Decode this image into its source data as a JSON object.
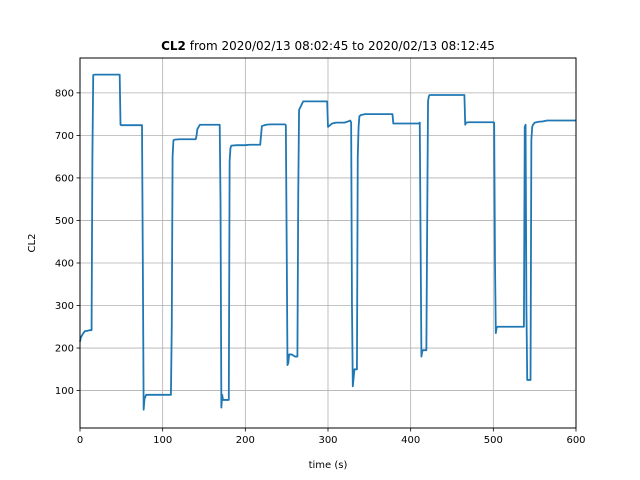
{
  "chart_data": {
    "type": "line",
    "title_bold": "CL2",
    "title_rest": " from 2020/02/13 08:02:45 to 2020/02/13 08:12:45",
    "xlabel": "time (s)",
    "ylabel": "CL2",
    "xlim": [
      0,
      600
    ],
    "ylim": [
      12,
      882
    ],
    "xticks": [
      0,
      100,
      200,
      300,
      400,
      500,
      600
    ],
    "yticks": [
      100,
      200,
      300,
      400,
      500,
      600,
      700,
      800
    ],
    "grid": true,
    "line_color": "#1f77b4",
    "series": [
      {
        "x": [
          0,
          1,
          4,
          6,
          8,
          12,
          13,
          14,
          15,
          16,
          18,
          20,
          30,
          40,
          48,
          49,
          50,
          60,
          70,
          75,
          76,
          77,
          78,
          80,
          90,
          100,
          110,
          111,
          112,
          113,
          114,
          115,
          120,
          130,
          140,
          141,
          142,
          145,
          150,
          160,
          168,
          169,
          170,
          171,
          172,
          173,
          175,
          178,
          179,
          180,
          181,
          182,
          183,
          190,
          200,
          205,
          210,
          218,
          219,
          220,
          225,
          230,
          240,
          248,
          249,
          250,
          251,
          252,
          253,
          254,
          256,
          260,
          262,
          263,
          264,
          265,
          270,
          280,
          290,
          297,
          298,
          299,
          300,
          305,
          310,
          320,
          326,
          327,
          328,
          329,
          330,
          331,
          332,
          333,
          334,
          335,
          336,
          337,
          338,
          340,
          345,
          350,
          360,
          370,
          378,
          379,
          380,
          390,
          400,
          410,
          411,
          412,
          413,
          414,
          415,
          416,
          417,
          418,
          419,
          420,
          421,
          422,
          423,
          425,
          430,
          440,
          450,
          465,
          466,
          467,
          470,
          480,
          490,
          500,
          501,
          502,
          503,
          504,
          505,
          510,
          520,
          530,
          535,
          536,
          537,
          538,
          539,
          540,
          541,
          542,
          543,
          544,
          545,
          546,
          547,
          548,
          549,
          550,
          555,
          560,
          565,
          570,
          580,
          590,
          600
        ],
        "values": [
          215,
          225,
          235,
          240,
          240,
          242,
          242,
          242,
          650,
          842,
          843,
          843,
          843,
          843,
          843,
          725,
          724,
          724,
          724,
          724,
          400,
          55,
          80,
          90,
          90,
          90,
          90,
          250,
          650,
          688,
          690,
          690,
          691,
          691,
          691,
          700,
          715,
          725,
          725,
          725,
          725,
          725,
          540,
          60,
          90,
          78,
          78,
          78,
          78,
          78,
          640,
          670,
          676,
          677,
          677,
          678,
          678,
          678,
          700,
          722,
          725,
          726,
          726,
          726,
          724,
          450,
          160,
          165,
          185,
          185,
          185,
          180,
          180,
          180,
          560,
          760,
          780,
          780,
          780,
          780,
          780,
          780,
          720,
          728,
          730,
          730,
          734,
          735,
          730,
          300,
          110,
          130,
          150,
          150,
          150,
          150,
          650,
          720,
          745,
          748,
          750,
          750,
          750,
          750,
          750,
          728,
          728,
          728,
          728,
          728,
          730,
          450,
          180,
          192,
          195,
          195,
          195,
          195,
          195,
          500,
          780,
          792,
          795,
          795,
          795,
          795,
          795,
          795,
          725,
          730,
          731,
          731,
          731,
          731,
          730,
          400,
          235,
          248,
          250,
          250,
          250,
          250,
          250,
          250,
          250,
          720,
          725,
          300,
          125,
          125,
          125,
          125,
          125,
          690,
          720,
          725,
          727,
          730,
          732,
          733,
          735,
          735,
          735,
          735,
          735
        ]
      }
    ]
  }
}
